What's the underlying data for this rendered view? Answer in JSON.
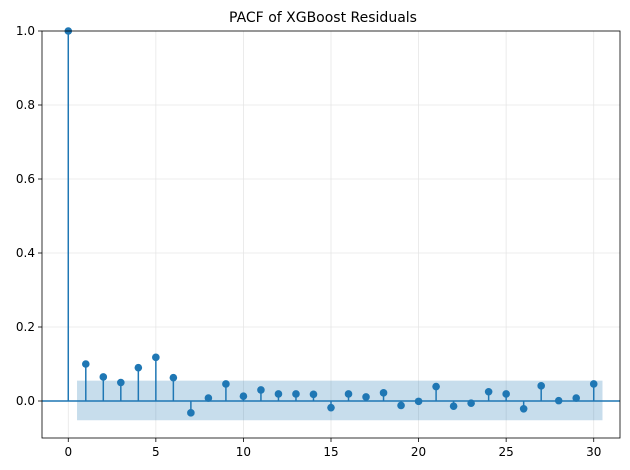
{
  "chart_data": {
    "type": "stem",
    "title": "PACF of XGBoost Residuals",
    "xlabel": "",
    "ylabel": "",
    "xlim": [
      -1.5,
      31.5
    ],
    "ylim": [
      -0.1,
      1.0
    ],
    "xticks": [
      0,
      5,
      10,
      15,
      20,
      25,
      30
    ],
    "yticks": [
      0.0,
      0.2,
      0.4,
      0.6,
      0.8,
      1.0
    ],
    "ytick_labels": [
      "0.0",
      "0.2",
      "0.4",
      "0.6",
      "0.8",
      "1.0"
    ],
    "grid": true,
    "confidence_band": {
      "lower": -0.052,
      "upper": 0.055,
      "x_start": 0.5,
      "x_end": 30.5
    },
    "lags": [
      0,
      1,
      2,
      3,
      4,
      5,
      6,
      7,
      8,
      9,
      10,
      11,
      12,
      13,
      14,
      15,
      16,
      17,
      18,
      19,
      20,
      21,
      22,
      23,
      24,
      25,
      26,
      27,
      28,
      29,
      30
    ],
    "values": [
      1.0,
      0.1,
      0.065,
      0.05,
      0.09,
      0.118,
      0.063,
      -0.032,
      0.008,
      0.046,
      0.013,
      0.03,
      0.019,
      0.019,
      0.018,
      -0.018,
      0.019,
      0.011,
      0.022,
      -0.012,
      -0.001,
      0.039,
      -0.014,
      -0.006,
      0.025,
      0.019,
      -0.021,
      0.041,
      0.001,
      0.008,
      0.046
    ],
    "colors": {
      "marker": "#1f77b4",
      "band": "#1f77b4",
      "zero_line": "#1f77b4",
      "grid": "#e6e6e6",
      "axes": "#000000"
    }
  }
}
